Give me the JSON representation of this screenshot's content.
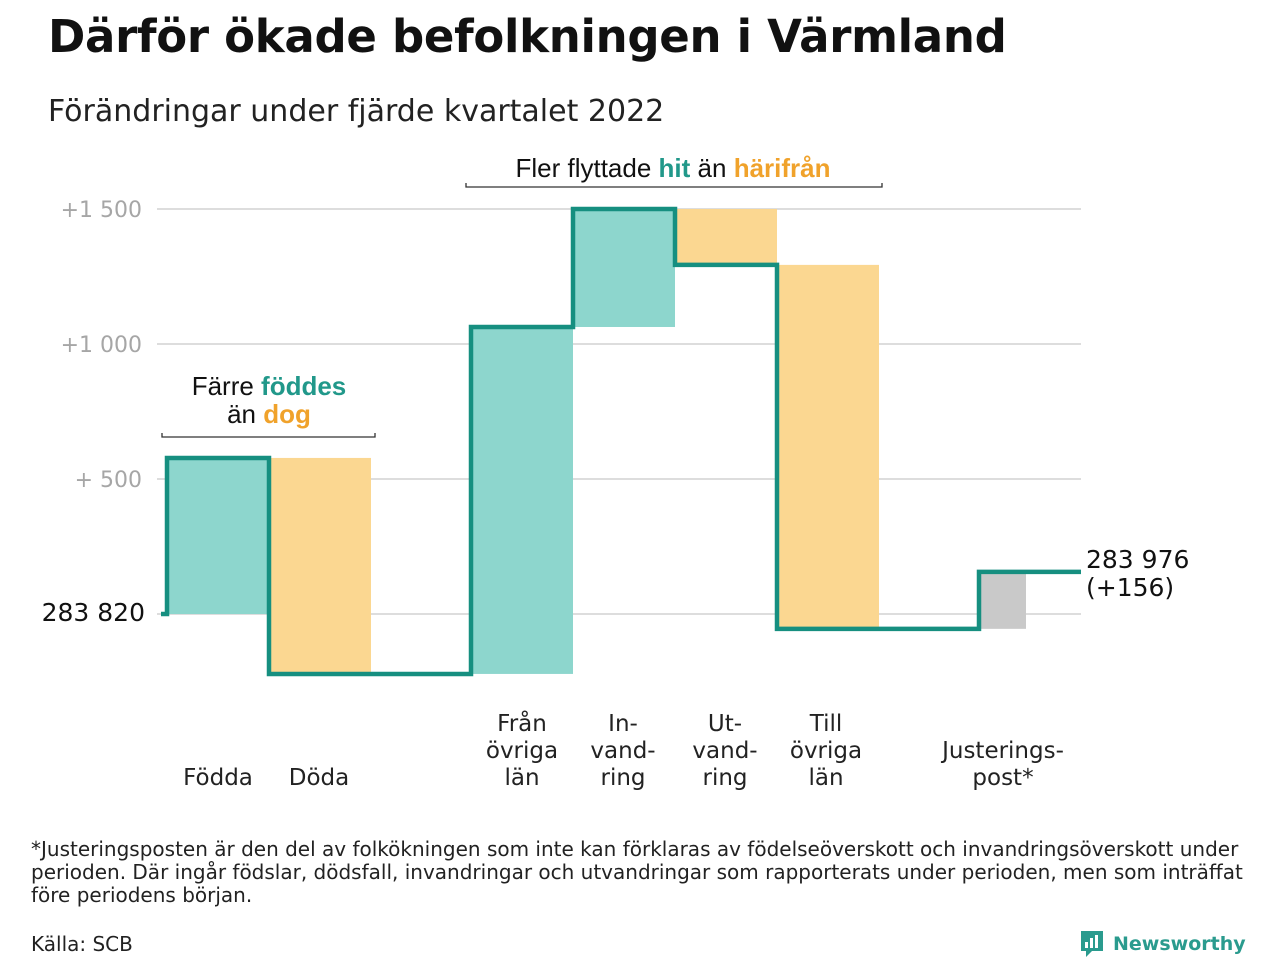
{
  "title": "Därför ökade befolkningen i Värmland",
  "subtitle": "Förändringar under fjärde kvartalet 2022",
  "colors": {
    "teal_line": "#168f80",
    "teal_fill": "#8dd6cd",
    "orange_fill": "#fbd791",
    "orange_text": "#f0a22b",
    "teal_text": "#21988a",
    "adjust_fill": "#c9c9c9",
    "grid": "#dddddd",
    "tick_text": "#a6a6a6"
  },
  "annotations": {
    "births_deaths": {
      "line1_pre": "Färre ",
      "line1_hl": "föddes",
      "line2_pre": "än ",
      "line2_hl": "dog"
    },
    "migration": {
      "pre": "Fler flyttade ",
      "hl1": "hit",
      "mid": " än ",
      "hl2": "härifrån"
    }
  },
  "chart_data": {
    "type": "waterfall",
    "title": "Därför ökade befolkningen i Värmland",
    "subtitle": "Förändringar under fjärde kvartalet 2022",
    "start_value": 283820,
    "start_label": "283 820",
    "end_value": 283976,
    "end_label_line1": "283 976",
    "end_label_line2": "(+156)",
    "ylim": [
      -260,
      1560
    ],
    "y_ticks": [
      {
        "value": 500,
        "label": "+ 500"
      },
      {
        "value": 1000,
        "label": "+1 000"
      },
      {
        "value": 1500,
        "label": "+1 500"
      }
    ],
    "steps": [
      {
        "label": [
          "Födda"
        ],
        "delta": 578,
        "kind": "in"
      },
      {
        "label": [
          "Döda"
        ],
        "delta": -800,
        "kind": "out"
      },
      {
        "label": [
          "Från",
          "övriga",
          "län"
        ],
        "delta": 1285,
        "kind": "in"
      },
      {
        "label": [
          "In-",
          "vand-",
          "ring"
        ],
        "delta": 437,
        "kind": "in"
      },
      {
        "label": [
          "Ut-",
          "vand-",
          "ring"
        ],
        "delta": -207,
        "kind": "out"
      },
      {
        "label": [
          "Till",
          "övriga",
          "län"
        ],
        "delta": -1348,
        "kind": "out"
      },
      {
        "label": [
          "Justerings-",
          "post*"
        ],
        "delta": 211,
        "kind": "adjust"
      }
    ]
  },
  "footnote": "*Justeringsposten är den del av folkökningen som inte kan förklaras av födelseöverskott och invandringsöverskott under perioden. Där ingår födslar, dödsfall, invandringar och utvandringar som rapporterats under perioden, men som inträffat före periodens början.",
  "source": "Källa: SCB",
  "brand": {
    "name": "Newsworthy",
    "icon": "newsworthy-logo-icon"
  }
}
